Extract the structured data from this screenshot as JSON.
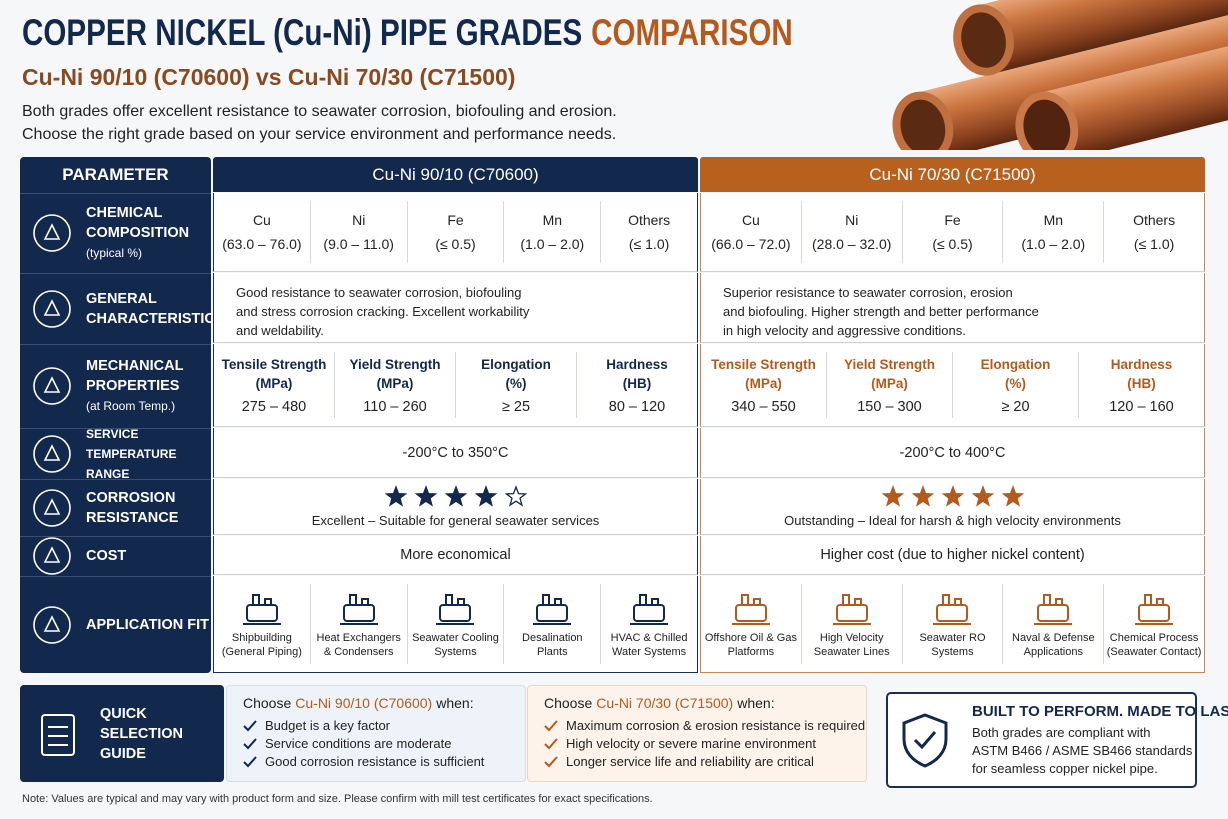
{
  "header": {
    "title_main": "COPPER NICKEL (Cu-Ni) PIPE GRADES",
    "title_accent": "COMPARISON",
    "subtitle": "Cu-Ni 90/10 (C70600) vs Cu-Ni 70/30 (C71500)",
    "intro": [
      "Both grades offer excellent resistance to seawater corrosion, biofouling and erosion.",
      "Choose the right grade based on your service environment and performance needs."
    ]
  },
  "table": {
    "parameter_header": "PARAMETER",
    "grades": [
      "Cu-Ni 90/10 (C70600)",
      "Cu-Ni 70/30 (C71500)"
    ],
    "composition": {
      "label": [
        "CHEMICAL",
        "COMPOSITION"
      ],
      "note": "(typical %)",
      "grades": [
        [
          {
            "element": "Cu",
            "range": "(63.0 – 76.0)"
          },
          {
            "element": "Ni",
            "range": "(9.0 – 11.0)"
          },
          {
            "element": "Fe",
            "range": "(≤ 0.5)"
          },
          {
            "element": "Mn",
            "range": "(1.0 – 2.0)"
          },
          {
            "element": "Others",
            "range": "(≤ 1.0)"
          }
        ],
        [
          {
            "element": "Cu",
            "range": "(66.0 – 72.0)"
          },
          {
            "element": "Ni",
            "range": "(28.0 – 32.0)"
          },
          {
            "element": "Fe",
            "range": "(≤ 0.5)"
          },
          {
            "element": "Mn",
            "range": "(1.0 – 2.0)"
          },
          {
            "element": "Others",
            "range": "(≤ 1.0)"
          }
        ]
      ]
    },
    "general": {
      "label": [
        "GENERAL",
        "CHARACTERISTICS"
      ],
      "grades": [
        [
          "Good resistance to seawater corrosion, biofouling",
          "and stress corrosion cracking. Excellent workability",
          "and weldability."
        ],
        [
          "Superior resistance to seawater corrosion, erosion",
          "and biofouling. Higher strength and better performance",
          "in high velocity and aggressive conditions."
        ]
      ]
    },
    "mechanical": {
      "label": [
        "MECHANICAL",
        "PROPERTIES"
      ],
      "note": "(at Room Temp.)",
      "grades": [
        [
          {
            "name": [
              "Tensile Strength",
              "(MPa)"
            ],
            "value": "275 – 480"
          },
          {
            "name": [
              "Yield Strength",
              "(MPa)"
            ],
            "value": "110 – 260"
          },
          {
            "name": [
              "Elongation",
              "(%)"
            ],
            "value": "≥ 25"
          },
          {
            "name": [
              "Hardness",
              "(HB)"
            ],
            "value": "80 – 120"
          }
        ],
        [
          {
            "name": [
              "Tensile Strength",
              "(MPa)"
            ],
            "value": "340 – 550"
          },
          {
            "name": [
              "Yield Strength",
              "(MPa)"
            ],
            "value": "150 – 300"
          },
          {
            "name": [
              "Elongation",
              "(%)"
            ],
            "value": "≥ 20"
          },
          {
            "name": [
              "Hardness",
              "(HB)"
            ],
            "value": "120 – 160"
          }
        ]
      ]
    },
    "temperature": {
      "label": [
        "SERVICE TEMPERATURE",
        "RANGE"
      ],
      "grades": [
        "-200°C to 350°C",
        "-200°C to 400°C"
      ]
    },
    "corrosion": {
      "label": [
        "CORROSION",
        "RESISTANCE"
      ],
      "stars_total": 5,
      "grades": [
        {
          "stars": 4,
          "text": "Excellent – Suitable for general seawater services"
        },
        {
          "stars": 5,
          "text": "Outstanding – Ideal for harsh & high velocity environments"
        }
      ]
    },
    "cost": {
      "label": [
        "COST"
      ],
      "grades": [
        "More economical",
        "Higher cost (due to higher nickel content)"
      ]
    },
    "applications": {
      "label": [
        "APPLICATION FIT"
      ],
      "grades": [
        [
          [
            "Shipbuilding",
            "(General Piping)"
          ],
          [
            "Heat Exchangers",
            "& Condensers"
          ],
          [
            "Seawater Cooling",
            "Systems"
          ],
          [
            "Desalination",
            "Plants"
          ],
          [
            "HVAC & Chilled",
            "Water Systems"
          ]
        ],
        [
          [
            "Offshore Oil & Gas",
            "Platforms"
          ],
          [
            "High Velocity",
            "Seawater Lines"
          ],
          [
            "Seawater RO",
            "Systems"
          ],
          [
            "Naval & Defense",
            "Applications"
          ],
          [
            "Chemical Process",
            "(Seawater Contact)"
          ]
        ]
      ]
    }
  },
  "guide": {
    "label": [
      "QUICK SELECTION",
      "GUIDE"
    ],
    "choices": [
      {
        "pre": "Choose",
        "grade": "Cu-Ni 90/10 (C70600)",
        "post": "when:",
        "items": [
          "Budget is a key factor",
          "Service conditions are moderate",
          "Good corrosion resistance is sufficient"
        ]
      },
      {
        "pre": "Choose",
        "grade": "Cu-Ni 70/30 (C71500)",
        "post": "when:",
        "items": [
          "Maximum corrosion & erosion resistance is required",
          "High velocity or severe marine environment",
          "Longer service life and reliability are critical"
        ]
      }
    ]
  },
  "badge": {
    "title": "BUILT TO PERFORM. MADE TO LAST.",
    "lines": [
      "Both grades are compliant with",
      "ASTM B466 / ASME SB466 standards",
      "for seamless copper nickel pipe."
    ]
  },
  "note": "Note: Values are typical and may vary with product form and size. Please confirm with mill test certificates for exact specifications."
}
